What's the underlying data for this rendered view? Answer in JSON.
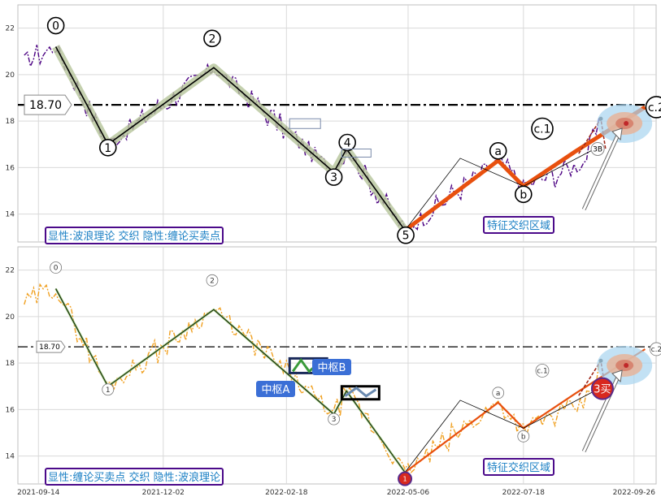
{
  "chart_data": [
    {
      "type": "line",
      "panel": "top",
      "note": "显性:波浪理论 交织 隐性:缠论买卖点",
      "price_label": "18.70",
      "reference_line": 18.7,
      "zone_label": "特征交织区域",
      "ylim": [
        12.8,
        23.0
      ],
      "yticks": [
        14,
        16,
        18,
        20,
        22
      ],
      "x_range": [
        "2021-09-01",
        "2022-10-10"
      ],
      "grid": true,
      "wave_points": [
        {
          "label": "0",
          "date": "2021-09-25",
          "value": 21.2
        },
        {
          "label": "1",
          "date": "2021-10-28",
          "value": 17.0
        },
        {
          "label": "2",
          "date": "2022-01-03",
          "value": 20.3
        },
        {
          "label": "3",
          "date": "2022-03-20",
          "value": 15.8
        },
        {
          "label": "4",
          "date": "2022-03-28",
          "value": 16.8
        },
        {
          "label": "5",
          "date": "2022-05-04",
          "value": 13.3
        },
        {
          "label": "a",
          "date": "2022-07-02",
          "value": 16.3
        },
        {
          "label": "b",
          "date": "2022-07-18",
          "value": 15.2
        },
        {
          "label": "c.1",
          "date": "2022-08-01",
          "value": 16.8
        },
        {
          "label": "c.2",
          "date": "2022-10-03",
          "value": 18.6
        }
      ],
      "buy_label": "3B"
    },
    {
      "type": "line",
      "panel": "bottom",
      "note": "显性:缠论买卖点 交织 隐性:波浪理论",
      "price_label": "18.70",
      "reference_line": 18.7,
      "zone_label": "特征交织区域",
      "ylim": [
        12.8,
        23.0
      ],
      "yticks": [
        14,
        16,
        18,
        20,
        22
      ],
      "xticks": [
        "2021-09-14",
        "2021-12-02",
        "2022-02-18",
        "2022-05-06",
        "2022-07-18",
        "2022-09-26"
      ],
      "x_range": [
        "2021-09-01",
        "2022-10-10"
      ],
      "grid": true,
      "pivot_labels": [
        "中枢A",
        "中枢B"
      ],
      "buy1_label": "1",
      "buy3_label": "3买",
      "wave_labels": [
        "0",
        "1",
        "2",
        "3",
        "a",
        "b",
        "c.1",
        "c.2"
      ]
    }
  ]
}
